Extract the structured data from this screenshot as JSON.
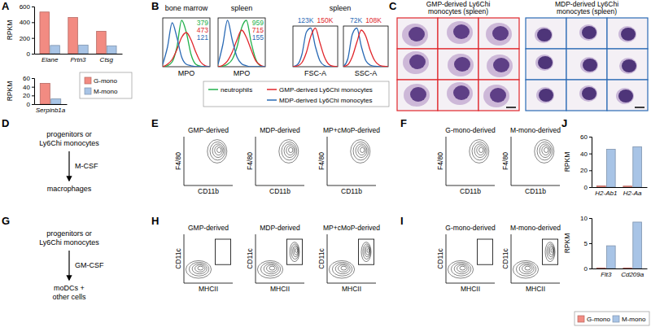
{
  "panel_labels": [
    "A",
    "B",
    "C",
    "D",
    "E",
    "F",
    "G",
    "H",
    "I",
    "J"
  ],
  "chart_data": [
    {
      "type": "bar",
      "categories": [
        "Elane",
        "Prtn3",
        "Ctsg"
      ],
      "series": [
        {
          "name": "G-mono",
          "color": "#f28b82",
          "values": [
            530,
            460,
            285
          ]
        },
        {
          "name": "M-mono",
          "color": "#a8c4e6",
          "values": [
            105,
            110,
            100
          ]
        }
      ],
      "y_label": "RPKM",
      "ylim": [
        0,
        600
      ],
      "yticks": [
        0,
        200,
        400,
        600
      ]
    },
    {
      "type": "bar",
      "categories": [
        "Serpinb1a"
      ],
      "series": [
        {
          "color": "#f28b82",
          "values": [
            48
          ]
        },
        {
          "color": "#a8c4e6",
          "values": [
            12
          ]
        }
      ],
      "y_label": "RPKM",
      "ylim": [
        0,
        60
      ],
      "yticks": [
        0,
        20,
        40,
        60
      ]
    },
    {
      "type": "line",
      "title": "bone marrow",
      "x_label": "MPO",
      "x": [
        0,
        10,
        20,
        30,
        40,
        50,
        60,
        70,
        80,
        90,
        100
      ],
      "series": [
        {
          "name": "neutrophils",
          "color": "#22b14c",
          "values": [
            0,
            2,
            10,
            40,
            95,
            70,
            25,
            5,
            1,
            0,
            0
          ]
        },
        {
          "name": "GMP-derived Ly6Chi monocytes",
          "color": "#e0262b",
          "values": [
            0,
            5,
            15,
            35,
            60,
            70,
            55,
            30,
            10,
            2,
            0
          ]
        },
        {
          "name": "MDP-derived Ly6Chi monocytes",
          "color": "#2a6ab5",
          "values": [
            5,
            40,
            90,
            60,
            20,
            5,
            2,
            0,
            0,
            0,
            0
          ]
        }
      ],
      "xlim": [
        0,
        100
      ],
      "ylim": [
        0,
        100
      ],
      "tick_labels": false,
      "annotations": [
        {
          "text": "379",
          "color": "#22b14c"
        },
        {
          "text": "473",
          "color": "#e0262b"
        },
        {
          "text": "121",
          "color": "#2a6ab5"
        }
      ]
    },
    {
      "type": "line",
      "title": "spleen",
      "x_label": "MPO",
      "x": [
        0,
        10,
        20,
        30,
        40,
        50,
        60,
        70,
        80,
        90,
        100
      ],
      "series": [
        {
          "color": "#22b14c",
          "values": [
            0,
            1,
            5,
            15,
            40,
            80,
            95,
            50,
            15,
            2,
            0
          ]
        },
        {
          "color": "#e0262b",
          "values": [
            0,
            3,
            12,
            30,
            55,
            75,
            60,
            35,
            12,
            3,
            0
          ]
        },
        {
          "color": "#2a6ab5",
          "values": [
            5,
            45,
            95,
            55,
            20,
            6,
            2,
            0,
            0,
            0,
            0
          ]
        }
      ],
      "xlim": [
        0,
        100
      ],
      "ylim": [
        0,
        100
      ],
      "tick_labels": false,
      "annotations": [
        {
          "text": "959",
          "color": "#22b14c"
        },
        {
          "text": "715",
          "color": "#e0262b"
        },
        {
          "text": "155",
          "color": "#2a6ab5"
        }
      ]
    },
    {
      "type": "line",
      "title": "spleen",
      "x_label": "FSC-A",
      "x": [
        0,
        10,
        20,
        30,
        40,
        50,
        60,
        70,
        80,
        90,
        100
      ],
      "series": [
        {
          "color": "#2a6ab5",
          "values": [
            0,
            5,
            30,
            85,
            95,
            50,
            15,
            3,
            0,
            0,
            0
          ]
        },
        {
          "color": "#e0262b",
          "values": [
            0,
            2,
            10,
            35,
            75,
            95,
            60,
            25,
            6,
            1,
            0
          ]
        }
      ],
      "xlim": [
        0,
        100
      ],
      "ylim": [
        0,
        100
      ],
      "tick_labels": false,
      "annotations": [
        {
          "text": "123K",
          "color": "#2a6ab5"
        },
        {
          "text": "150K",
          "color": "#e0262b"
        }
      ]
    },
    {
      "type": "line",
      "x_label": "SSC-A",
      "x": [
        0,
        10,
        20,
        30,
        40,
        50,
        60,
        70,
        80,
        90,
        100
      ],
      "series": [
        {
          "color": "#2a6ab5",
          "values": [
            0,
            20,
            80,
            95,
            50,
            15,
            4,
            1,
            0,
            0,
            0
          ]
        },
        {
          "color": "#e0262b",
          "values": [
            0,
            5,
            25,
            60,
            90,
            75,
            40,
            15,
            4,
            1,
            0
          ]
        }
      ],
      "xlim": [
        0,
        100
      ],
      "ylim": [
        0,
        100
      ],
      "tick_labels": false,
      "annotations": [
        {
          "text": "72K",
          "color": "#2a6ab5"
        },
        {
          "text": "108K",
          "color": "#e0262b"
        }
      ]
    },
    {
      "type": "bar",
      "categories": [
        "H2-Ab1",
        "H2-Aa"
      ],
      "series": [
        {
          "name": "G-mono",
          "color": "#f28b82",
          "values": [
            1.5,
            1.2
          ]
        },
        {
          "name": "M-mono",
          "color": "#a8c4e6",
          "values": [
            45,
            48
          ]
        }
      ],
      "y_label": "RPKM",
      "ylim": [
        0,
        60
      ],
      "yticks": [
        0,
        20,
        40,
        60
      ]
    },
    {
      "type": "bar",
      "categories": [
        "Flt3",
        "Cd209a"
      ],
      "series": [
        {
          "color": "#f28b82",
          "values": [
            0.1,
            0.1
          ]
        },
        {
          "color": "#a8c4e6",
          "values": [
            4.5,
            9.2
          ]
        }
      ],
      "y_label": "RPKM",
      "ylim": [
        0,
        10
      ],
      "yticks": [
        0,
        5,
        10
      ]
    }
  ],
  "micrographs": [
    {
      "title_lines": [
        "GMP-derived Ly6Chi",
        "monocytes (spleen)"
      ],
      "color": "#e0262b"
    },
    {
      "title_lines": [
        "MDP-derived Ly6Chi",
        "monocytes (spleen)"
      ],
      "color": "#2a6ab5"
    }
  ],
  "diagrams": [
    {
      "lines": [
        "progenitors or",
        "Ly6Chi monocytes"
      ],
      "arrow_label": "M-CSF",
      "result_lines": [
        "macrophages"
      ]
    },
    {
      "lines": [
        "progenitors or",
        "Ly6Chi monocytes"
      ],
      "arrow_label": "GM-CSF",
      "result_lines": [
        "moDCs +",
        "other cells"
      ]
    }
  ],
  "flow_panels": [
    {
      "x_label": "CD11b",
      "y_label": "F4/80",
      "gate": false,
      "plots": [
        "GMP-derived",
        "MDP-derived",
        "MP+cMoP-derived"
      ]
    },
    {
      "x_label": "CD11b",
      "y_label": "F4/80",
      "gate": false,
      "plots": [
        "G-mono-derived",
        "M-mono-derived"
      ]
    },
    {
      "x_label": "MHCII",
      "y_label": "CD11c",
      "gate": true,
      "plots": [
        "GMP-derived",
        "MDP-derived",
        "MP+cMoP-derived"
      ]
    },
    {
      "x_label": "MHCII",
      "y_label": "CD11c",
      "gate": true,
      "plots": [
        "G-mono-derived",
        "M-mono-derived"
      ]
    }
  ]
}
